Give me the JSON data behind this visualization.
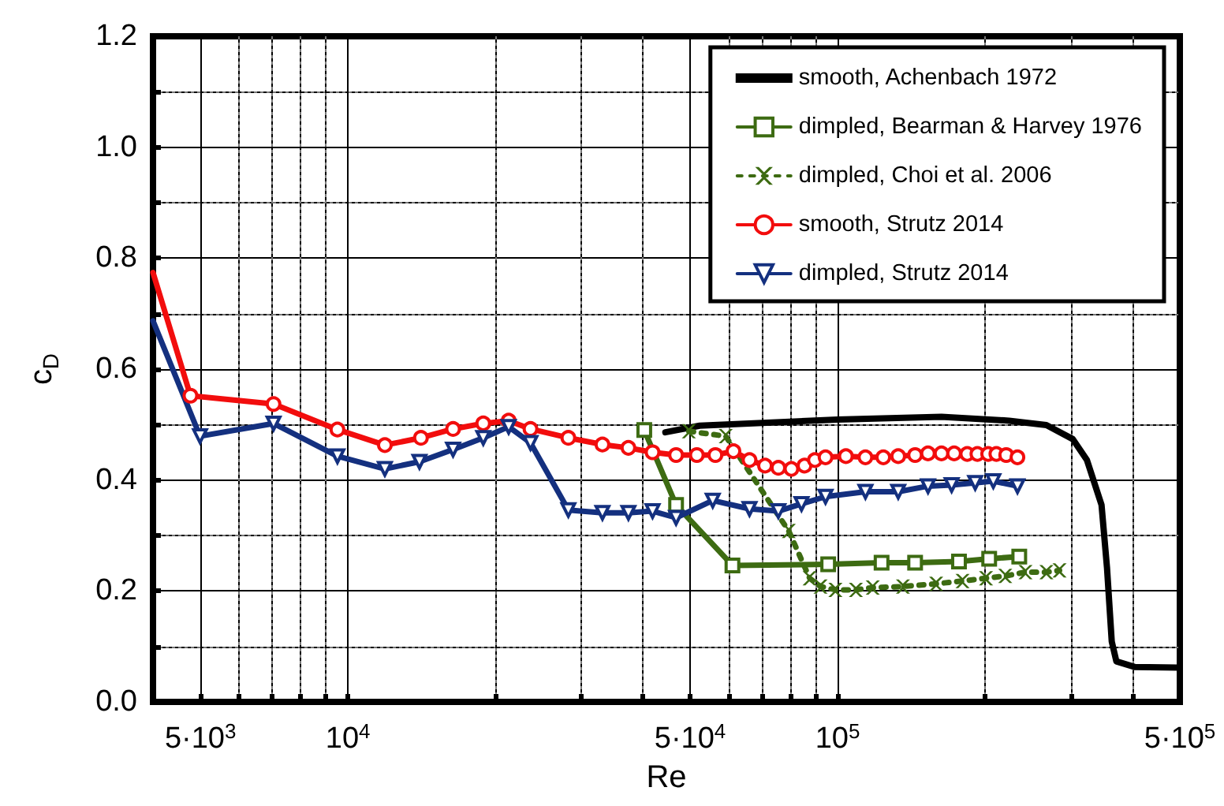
{
  "chart_data": {
    "type": "line",
    "xlabel": "Re",
    "ylabel": "c$_{D}$",
    "log": "x",
    "grid": true,
    "legend": "top right",
    "xlim": [
      4000,
      500000
    ],
    "xticks": [
      {
        "value": 5000,
        "label": "5·10$^{3}$"
      },
      {
        "value": 6000,
        "label": null
      },
      {
        "value": 7000,
        "label": null
      },
      {
        "value": 8000,
        "label": null
      },
      {
        "value": 9000,
        "label": null
      },
      {
        "value": 10000,
        "label": "10$^{4}$"
      },
      {
        "value": 20000,
        "label": null
      },
      {
        "value": 30000,
        "label": null
      },
      {
        "value": 40000,
        "label": null
      },
      {
        "value": 50000,
        "label": "5·10$^{4}$"
      },
      {
        "value": 60000,
        "label": null
      },
      {
        "value": 70000,
        "label": null
      },
      {
        "value": 80000,
        "label": null
      },
      {
        "value": 90000,
        "label": null
      },
      {
        "value": 100000,
        "label": "10$^{5}$"
      },
      {
        "value": 200000,
        "label": null
      },
      {
        "value": 300000,
        "label": null
      },
      {
        "value": 400000,
        "label": null
      },
      {
        "value": 500000,
        "label": "5·10$^{5}$"
      }
    ],
    "ylim": [
      0,
      1.2
    ],
    "yticks": [
      {
        "value": 0,
        "label": "0.0"
      },
      {
        "value": 0.1,
        "label": null
      },
      {
        "value": 0.2,
        "label": "0.2"
      },
      {
        "value": 0.3,
        "label": null
      },
      {
        "value": 0.4,
        "label": "0.4"
      },
      {
        "value": 0.5,
        "label": null
      },
      {
        "value": 0.6,
        "label": "0.6"
      },
      {
        "value": 0.7,
        "label": null
      },
      {
        "value": 0.8,
        "label": "0.8"
      },
      {
        "value": 0.9,
        "label": null
      },
      {
        "value": 1.0,
        "label": "1.0"
      },
      {
        "value": 1.1,
        "label": null
      },
      {
        "value": 1.2,
        "label": "1.2"
      }
    ],
    "series": [
      {
        "name": "smooth, Achenbach 1972",
        "color": "#000000",
        "marker": "none",
        "line_style": "solid",
        "x": [
          44500,
          52300,
          100000,
          163000,
          224000,
          267000,
          302000,
          323000,
          346000,
          355000,
          363000,
          371000,
          404000,
          495000
        ],
        "values": [
          0.486,
          0.498,
          0.509,
          0.514,
          0.507,
          0.499,
          0.474,
          0.436,
          0.355,
          0.242,
          0.109,
          0.073,
          0.063,
          0.062
        ]
      },
      {
        "name": "dimpled, Bearman & Harvey 1976",
        "color": "#3d6b12",
        "marker": "square",
        "line_style": "solid",
        "x": [
          40300,
          46800,
          61000,
          95700,
          123000,
          144000,
          177000,
          204000,
          235000
        ],
        "values": [
          0.49,
          0.355,
          0.246,
          0.248,
          0.251,
          0.251,
          0.253,
          0.258,
          0.262
        ]
      },
      {
        "name": "dimpled, Choi et al. 2006",
        "color": "#3d6b12",
        "marker": "cross",
        "line_style": "dotted",
        "x": [
          49700,
          59100,
          79500,
          87700,
          92300,
          99000,
          109000,
          118000,
          136000,
          159000,
          180000,
          201000,
          220000,
          242000,
          267000,
          284000
        ],
        "values": [
          0.488,
          0.479,
          0.308,
          0.223,
          0.208,
          0.202,
          0.202,
          0.206,
          0.208,
          0.213,
          0.218,
          0.223,
          0.227,
          0.234,
          0.234,
          0.237
        ]
      },
      {
        "name": "smooth, Strutz 2014",
        "color": "#f20d0d",
        "marker": "circle",
        "line_style": "solid",
        "x": [
          4000,
          4770,
          7050,
          9520,
          11900,
          14100,
          16400,
          18900,
          21300,
          23600,
          28200,
          33100,
          37400,
          41900,
          46800,
          51600,
          56300,
          61300,
          66100,
          71100,
          75700,
          80500,
          85600,
          89900,
          94500,
          104000,
          114000,
          124000,
          133000,
          144000,
          153000,
          163000,
          173000,
          184000,
          193000,
          203000,
          211000,
          221000,
          233000
        ],
        "values": [
          0.774,
          0.552,
          0.537,
          0.491,
          0.463,
          0.476,
          0.492,
          0.502,
          0.507,
          0.492,
          0.476,
          0.464,
          0.458,
          0.45,
          0.445,
          0.445,
          0.445,
          0.452,
          0.436,
          0.426,
          0.422,
          0.42,
          0.426,
          0.436,
          0.441,
          0.443,
          0.441,
          0.441,
          0.443,
          0.445,
          0.448,
          0.448,
          0.448,
          0.447,
          0.447,
          0.447,
          0.447,
          0.445,
          0.441
        ]
      },
      {
        "name": "dimpled, Strutz 2014",
        "color": "#14307f",
        "marker": "triangle",
        "line_style": "solid",
        "x": [
          4000,
          4990,
          7050,
          9520,
          11900,
          14000,
          16400,
          18900,
          21300,
          23600,
          28200,
          33100,
          37400,
          41900,
          46800,
          55600,
          66100,
          75700,
          84400,
          94500,
          114000,
          133000,
          153000,
          171000,
          191000,
          208000,
          233000
        ],
        "values": [
          0.687,
          0.479,
          0.502,
          0.443,
          0.42,
          0.433,
          0.455,
          0.476,
          0.496,
          0.467,
          0.346,
          0.341,
          0.341,
          0.344,
          0.332,
          0.363,
          0.348,
          0.344,
          0.357,
          0.37,
          0.379,
          0.379,
          0.389,
          0.391,
          0.395,
          0.398,
          0.389
        ]
      }
    ]
  }
}
